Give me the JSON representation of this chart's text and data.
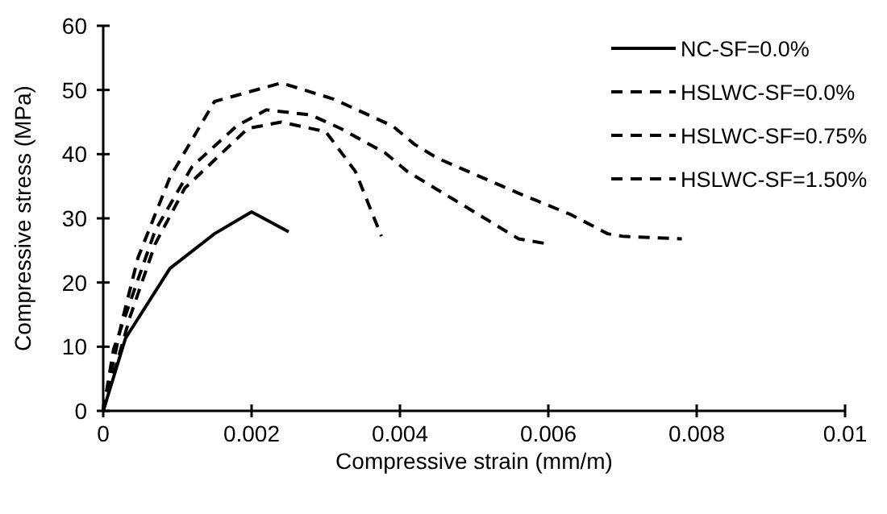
{
  "chart_data": {
    "type": "line",
    "xlabel": "Compressive strain (mm/m)",
    "ylabel": "Compressive stress (MPa)",
    "xlim": [
      0,
      0.01
    ],
    "xticks": [
      0,
      0.002,
      0.004,
      0.006,
      0.008,
      0.01
    ],
    "ylim": [
      0,
      60
    ],
    "yticks": [
      0,
      10,
      20,
      30,
      40,
      50,
      60
    ],
    "grid": false,
    "legend": "top right",
    "series": [
      {
        "name": "NC-SF=0.0%",
        "color": "#000000",
        "line_style": "solid",
        "x": [
          0,
          0.0003,
          0.0009,
          0.0015,
          0.002,
          0.0025
        ],
        "values": [
          0,
          11.3,
          22.2,
          27.6,
          31,
          27.9
        ]
      },
      {
        "name": "HSLWC-SF=0.0%",
        "color": "#000000",
        "line_style": "dashed",
        "x": [
          0,
          0.00036,
          0.0007,
          0.0011,
          0.00195,
          0.0024,
          0.003,
          0.0034,
          0.00375
        ],
        "values": [
          0,
          14.6,
          26,
          34.7,
          44,
          45,
          43.5,
          37.3,
          27.2
        ]
      },
      {
        "name": "HSLWC-SF=0.75%",
        "color": "#000000",
        "line_style": "dashed",
        "x": [
          0,
          0.00014,
          0.0007,
          0.0012,
          0.0018,
          0.0022,
          0.0028,
          0.0032,
          0.0038,
          0.0041,
          0.0047,
          0.005,
          0.0056,
          0.006
        ],
        "values": [
          0,
          9.6,
          28.1,
          38.1,
          44.4,
          46.9,
          46.1,
          44,
          40.2,
          37.3,
          33.1,
          31,
          26.8,
          26
        ]
      },
      {
        "name": "HSLWC-SF=1.50%",
        "color": "#000000",
        "line_style": "dashed",
        "x": [
          0,
          0.00025,
          0.00047,
          0.0009,
          0.0015,
          0.0024,
          0.0031,
          0.0039,
          0.0042,
          0.0045,
          0.0056,
          0.0063,
          0.0068,
          0.007,
          0.0078
        ],
        "values": [
          0,
          13.8,
          23.9,
          36.4,
          48.2,
          51.1,
          48.6,
          44.4,
          41.5,
          39.4,
          33.9,
          30.6,
          27.6,
          27.2,
          26.8
        ]
      }
    ]
  }
}
